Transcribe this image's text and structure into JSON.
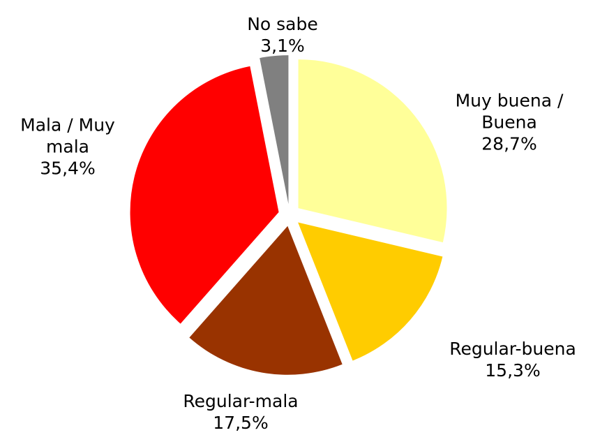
{
  "chart_data": {
    "type": "pie",
    "categories": [
      "Muy buena / Buena",
      "Regular-buena",
      "Regular-mala",
      "Mala / Muy mala",
      "No sabe"
    ],
    "values": [
      28.7,
      15.3,
      17.5,
      35.4,
      3.1
    ],
    "value_labels": [
      "28,7%",
      "15,3%",
      "17,5%",
      "35,4%",
      "3,1%"
    ],
    "colors": [
      "#FFFF99",
      "#FFCC00",
      "#993300",
      "#FF0000",
      "#808080"
    ]
  }
}
